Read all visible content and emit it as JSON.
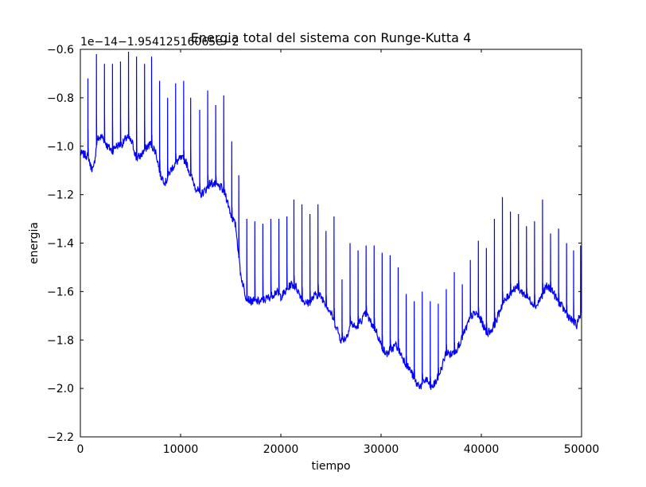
{
  "chart_data": {
    "type": "line",
    "title": "Energia total del sistema con Runge-Kutta 4",
    "xlabel": "tiempo",
    "ylabel": "energia",
    "offset_label": "1e−14−1.95412516065e−2",
    "xlim": [
      0,
      50000
    ],
    "ylim": [
      -2.2,
      -0.6
    ],
    "xticks": [
      0,
      10000,
      20000,
      30000,
      40000,
      50000
    ],
    "xtick_labels": [
      "0",
      "10000",
      "20000",
      "30000",
      "40000",
      "50000"
    ],
    "yticks": [
      -2.2,
      -2.0,
      -1.8,
      -1.6,
      -1.4,
      -1.2,
      -1.0,
      -0.8,
      -0.6
    ],
    "ytick_labels": [
      "−2.2",
      "−2.0",
      "−1.8",
      "−1.6",
      "−1.4",
      "−1.2",
      "−1.0",
      "−0.8",
      "−0.6"
    ],
    "grid": false,
    "line_color": "#0000ff",
    "baseline": [
      [
        0,
        -1.03
      ],
      [
        800,
        -1.04
      ],
      [
        1000,
        -1.08
      ],
      [
        1300,
        -1.1
      ],
      [
        1700,
        -0.97
      ],
      [
        2200,
        -0.96
      ],
      [
        2700,
        -1.0
      ],
      [
        3200,
        -1.02
      ],
      [
        3500,
        -1.0
      ],
      [
        4200,
        -0.99
      ],
      [
        4700,
        -0.96
      ],
      [
        5200,
        -0.99
      ],
      [
        5600,
        -1.05
      ],
      [
        6000,
        -1.04
      ],
      [
        6500,
        -1.01
      ],
      [
        7000,
        -0.99
      ],
      [
        7500,
        -1.02
      ],
      [
        8000,
        -1.12
      ],
      [
        8500,
        -1.15
      ],
      [
        9000,
        -1.1
      ],
      [
        9500,
        -1.07
      ],
      [
        10000,
        -1.05
      ],
      [
        10500,
        -1.06
      ],
      [
        11000,
        -1.12
      ],
      [
        11500,
        -1.17
      ],
      [
        12000,
        -1.2
      ],
      [
        12500,
        -1.18
      ],
      [
        13000,
        -1.15
      ],
      [
        13500,
        -1.16
      ],
      [
        14000,
        -1.17
      ],
      [
        14500,
        -1.2
      ],
      [
        15000,
        -1.28
      ],
      [
        15500,
        -1.33
      ],
      [
        16000,
        -1.53
      ],
      [
        16500,
        -1.62
      ],
      [
        17000,
        -1.64
      ],
      [
        17500,
        -1.64
      ],
      [
        18000,
        -1.64
      ],
      [
        18500,
        -1.63
      ],
      [
        19000,
        -1.62
      ],
      [
        19500,
        -1.6
      ],
      [
        20000,
        -1.62
      ],
      [
        20500,
        -1.6
      ],
      [
        21000,
        -1.57
      ],
      [
        21500,
        -1.58
      ],
      [
        22000,
        -1.62
      ],
      [
        22500,
        -1.65
      ],
      [
        23000,
        -1.64
      ],
      [
        23500,
        -1.61
      ],
      [
        24000,
        -1.62
      ],
      [
        24500,
        -1.65
      ],
      [
        25000,
        -1.69
      ],
      [
        25500,
        -1.74
      ],
      [
        26000,
        -1.8
      ],
      [
        26500,
        -1.79
      ],
      [
        27000,
        -1.73
      ],
      [
        27500,
        -1.75
      ],
      [
        28000,
        -1.72
      ],
      [
        28500,
        -1.69
      ],
      [
        29000,
        -1.73
      ],
      [
        29500,
        -1.76
      ],
      [
        30000,
        -1.82
      ],
      [
        30500,
        -1.86
      ],
      [
        31000,
        -1.84
      ],
      [
        31500,
        -1.82
      ],
      [
        32000,
        -1.86
      ],
      [
        32500,
        -1.9
      ],
      [
        33000,
        -1.93
      ],
      [
        33500,
        -1.98
      ],
      [
        34000,
        -1.99
      ],
      [
        34500,
        -1.96
      ],
      [
        35000,
        -2.0
      ],
      [
        35500,
        -1.97
      ],
      [
        36000,
        -1.92
      ],
      [
        36500,
        -1.85
      ],
      [
        37000,
        -1.86
      ],
      [
        37500,
        -1.84
      ],
      [
        38000,
        -1.8
      ],
      [
        38500,
        -1.75
      ],
      [
        39000,
        -1.7
      ],
      [
        39500,
        -1.69
      ],
      [
        40000,
        -1.72
      ],
      [
        40500,
        -1.77
      ],
      [
        41000,
        -1.76
      ],
      [
        41500,
        -1.72
      ],
      [
        42000,
        -1.66
      ],
      [
        42500,
        -1.63
      ],
      [
        43000,
        -1.6
      ],
      [
        43500,
        -1.58
      ],
      [
        44000,
        -1.6
      ],
      [
        44500,
        -1.62
      ],
      [
        45000,
        -1.64
      ],
      [
        45500,
        -1.66
      ],
      [
        46000,
        -1.62
      ],
      [
        46500,
        -1.58
      ],
      [
        47000,
        -1.59
      ],
      [
        47500,
        -1.63
      ],
      [
        48000,
        -1.66
      ],
      [
        48500,
        -1.69
      ],
      [
        49000,
        -1.72
      ],
      [
        49500,
        -1.74
      ],
      [
        50000,
        -1.68
      ]
    ],
    "spikes": [
      [
        750,
        -0.72
      ],
      [
        1600,
        -0.62
      ],
      [
        2400,
        -0.66
      ],
      [
        3200,
        -0.66
      ],
      [
        4000,
        -0.65
      ],
      [
        4800,
        -0.61
      ],
      [
        5600,
        -0.63
      ],
      [
        6400,
        -0.66
      ],
      [
        7100,
        -0.63
      ],
      [
        7900,
        -0.73
      ],
      [
        8700,
        -0.8
      ],
      [
        9500,
        -0.74
      ],
      [
        10300,
        -0.73
      ],
      [
        11000,
        -0.8
      ],
      [
        11900,
        -0.85
      ],
      [
        12700,
        -0.77
      ],
      [
        13500,
        -0.83
      ],
      [
        14300,
        -0.79
      ],
      [
        15100,
        -0.98
      ],
      [
        15800,
        -1.12
      ],
      [
        16600,
        -1.3
      ],
      [
        17400,
        -1.31
      ],
      [
        18200,
        -1.32
      ],
      [
        19000,
        -1.3
      ],
      [
        19800,
        -1.3
      ],
      [
        20600,
        -1.29
      ],
      [
        21300,
        -1.22
      ],
      [
        22100,
        -1.24
      ],
      [
        22900,
        -1.28
      ],
      [
        23700,
        -1.24
      ],
      [
        24500,
        -1.35
      ],
      [
        25300,
        -1.29
      ],
      [
        26100,
        -1.55
      ],
      [
        26900,
        -1.4
      ],
      [
        27700,
        -1.43
      ],
      [
        28500,
        -1.41
      ],
      [
        29300,
        -1.41
      ],
      [
        30100,
        -1.44
      ],
      [
        30900,
        -1.45
      ],
      [
        31700,
        -1.5
      ],
      [
        32500,
        -1.61
      ],
      [
        33300,
        -1.64
      ],
      [
        34100,
        -1.6
      ],
      [
        34900,
        -1.64
      ],
      [
        35700,
        -1.65
      ],
      [
        36500,
        -1.59
      ],
      [
        37300,
        -1.52
      ],
      [
        38100,
        -1.57
      ],
      [
        38900,
        -1.47
      ],
      [
        39700,
        -1.39
      ],
      [
        40500,
        -1.42
      ],
      [
        41300,
        -1.3
      ],
      [
        42100,
        -1.21
      ],
      [
        42900,
        -1.27
      ],
      [
        43700,
        -1.28
      ],
      [
        44500,
        -1.33
      ],
      [
        45300,
        -1.31
      ],
      [
        46100,
        -1.22
      ],
      [
        46900,
        -1.36
      ],
      [
        47700,
        -1.34
      ],
      [
        48500,
        -1.4
      ],
      [
        49200,
        -1.43
      ],
      [
        49900,
        -1.41
      ]
    ]
  }
}
